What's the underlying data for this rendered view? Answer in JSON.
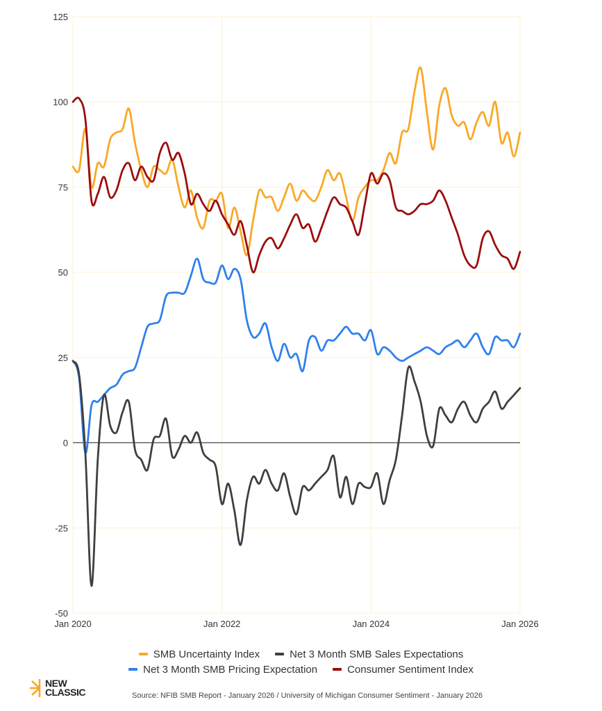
{
  "chart_data": {
    "type": "line",
    "title": "",
    "xlabel": "",
    "ylabel": "",
    "ylim": [
      -50,
      125
    ],
    "yticks": [
      -50,
      -25,
      0,
      25,
      50,
      75,
      100,
      125
    ],
    "ytick_labels": [
      "-50",
      "-25",
      "0",
      "25",
      "50",
      "75",
      "100",
      "125"
    ],
    "x_start": "Jan 2020",
    "x_end": "Jan 2026",
    "xticks": [
      {
        "month_index": 0,
        "label": "Jan 2020"
      },
      {
        "month_index": 24,
        "label": "Jan 2022"
      },
      {
        "month_index": 48,
        "label": "Jan 2024"
      },
      {
        "month_index": 72,
        "label": "Jan 2026"
      }
    ],
    "grid": true,
    "zero_line": true,
    "legend_position": "bottom",
    "series": [
      {
        "name": "SMB Uncertainty Index",
        "color": "#F9A825",
        "values": [
          81,
          80,
          92,
          75,
          82,
          81,
          89,
          91,
          92,
          98,
          88,
          80,
          75,
          81,
          80,
          79,
          83,
          75,
          69,
          74,
          66,
          63,
          71,
          71,
          73,
          63,
          69,
          62,
          55,
          65,
          74,
          72,
          72,
          68,
          72,
          76,
          71,
          74,
          72,
          71,
          75,
          80,
          77,
          79,
          72,
          65,
          72,
          75,
          77,
          77,
          80,
          85,
          82,
          91,
          92,
          103,
          110,
          97,
          86,
          99,
          104,
          96,
          93,
          94,
          89,
          94,
          97,
          93,
          100,
          88,
          91,
          84,
          91
        ]
      },
      {
        "name": "Net 3 Month SMB Sales Expectations",
        "color": "#3F3F3F",
        "values": [
          24,
          20,
          -3,
          -42,
          -5,
          14,
          5,
          3,
          9,
          12,
          -2,
          -5,
          -8,
          1,
          2,
          7,
          -4,
          -2,
          2,
          0,
          3,
          -3,
          -5,
          -7,
          -18,
          -12,
          -20,
          -30,
          -17,
          -10,
          -12,
          -8,
          -12,
          -14,
          -9,
          -16,
          -21,
          -13,
          -14,
          -12,
          -10,
          -8,
          -4,
          -16,
          -10,
          -18,
          -12,
          -13,
          -13,
          -9,
          -18,
          -11,
          -5,
          8,
          22,
          18,
          12,
          2,
          -1,
          10,
          8,
          6,
          10,
          12,
          8,
          6,
          10,
          12,
          15,
          10,
          12,
          14,
          16
        ]
      },
      {
        "name": "Net 3 Month SMB Pricing Expectation",
        "color": "#2F80ED",
        "values": [
          24,
          19,
          -3,
          11,
          12,
          14,
          16,
          17,
          20,
          21,
          22,
          28,
          34,
          35,
          36,
          43,
          44,
          44,
          44,
          49,
          54,
          48,
          47,
          47,
          52,
          48,
          51,
          48,
          36,
          31,
          32,
          35,
          28,
          24,
          29,
          25,
          26,
          21,
          30,
          31,
          27,
          30,
          30,
          32,
          34,
          32,
          32,
          30,
          33,
          26,
          28,
          27,
          25,
          24,
          25,
          26,
          27,
          28,
          27,
          26,
          28,
          29,
          30,
          28,
          30,
          32,
          28,
          26,
          31,
          30,
          30,
          28,
          32
        ]
      },
      {
        "name": "Consumer Sentiment Index",
        "color": "#9B0D0D",
        "values": [
          100,
          101,
          95,
          71,
          73,
          78,
          72,
          74,
          80,
          82,
          77,
          81,
          78,
          77,
          85,
          88,
          83,
          85,
          79,
          70,
          73,
          70,
          68,
          71,
          67,
          64,
          61,
          65,
          58,
          50,
          55,
          59,
          60,
          57,
          60,
          64,
          67,
          63,
          64,
          59,
          63,
          68,
          72,
          70,
          69,
          65,
          61,
          70,
          79,
          76,
          79,
          77,
          69,
          68,
          67,
          68,
          70,
          70,
          71,
          74,
          71,
          66,
          61,
          55,
          52,
          52,
          60,
          62,
          58,
          55,
          54,
          51,
          56
        ]
      }
    ]
  },
  "legend": {
    "row1": [
      {
        "label": "SMB Uncertainty Index",
        "color": "#F9A825"
      },
      {
        "label": "Net 3 Month SMB Sales Expectations",
        "color": "#3F3F3F"
      }
    ],
    "row2": [
      {
        "label": "Net 3 Month SMB Pricing Expectation",
        "color": "#2F80ED"
      },
      {
        "label": "Consumer Sentiment Index",
        "color": "#9B0D0D"
      }
    ]
  },
  "logo": {
    "line1": "NEW",
    "line2": "CLASSIC",
    "icon": "sunburst-icon",
    "accent": "#F9A825"
  },
  "source": "Source: NFIB SMB Report - January 2026 / University of Michigan Consumer Sentiment - January 2026"
}
